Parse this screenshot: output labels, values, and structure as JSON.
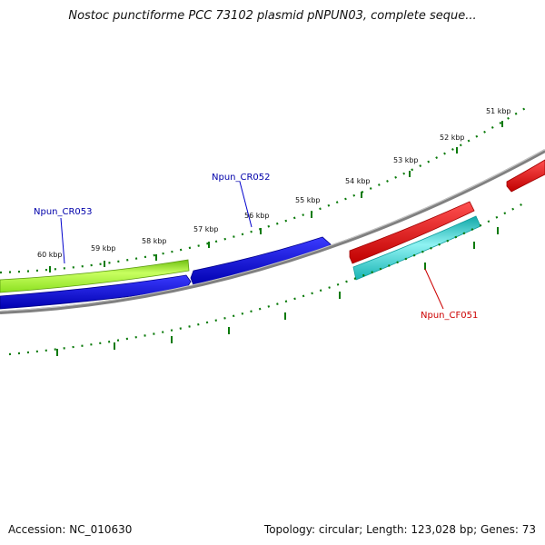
{
  "title": "Nostoc punctiforme PCC 73102 plasmid pNPUN03, complete seque...",
  "tick_labels": [
    {
      "text": "60 kbp"
    },
    {
      "text": "59 kbp"
    },
    {
      "text": "58 kbp"
    },
    {
      "text": "57 kbp"
    },
    {
      "text": "56 kbp"
    },
    {
      "text": "55 kbp"
    },
    {
      "text": "54 kbp"
    },
    {
      "text": "53 kbp"
    },
    {
      "text": "52 kbp"
    },
    {
      "text": "51 kbp"
    }
  ],
  "gene_labels": [
    {
      "text": "Npun_CR053",
      "color": "#0000aa"
    },
    {
      "text": "Npun_CR052",
      "color": "#0000aa"
    },
    {
      "text": "Npun_CF051",
      "color": "#cc0000"
    }
  ],
  "colors": {
    "backbone": "#808080",
    "ticks": "#0a7a0a",
    "forward_gene": "#ee0000",
    "reverse_gene": "#0000dd",
    "rna_gene": "#99ee22",
    "cds": "#22cccc"
  },
  "footer": {
    "accession": "Accession: NC_010630",
    "summary": "Topology: circular; Length: 123,028 bp; Genes: 73"
  }
}
